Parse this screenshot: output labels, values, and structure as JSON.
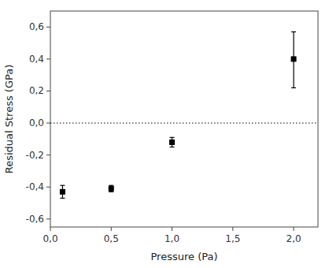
{
  "chart_data": {
    "type": "scatter",
    "x_label": "Pressure (Pa)",
    "y_label": "Residual Stress (GPa)",
    "x": [
      0.1,
      0.5,
      1.0,
      2.0
    ],
    "values": [
      -0.43,
      -0.41,
      -0.12,
      0.4
    ],
    "yerr_lower": [
      0.04,
      0.02,
      0.03,
      0.18
    ],
    "yerr_upper": [
      0.04,
      0.02,
      0.03,
      0.17
    ],
    "marker": "square",
    "color": "black",
    "hline_y": 0.0,
    "xlim": [
      0.0,
      2.2
    ],
    "ylim": [
      -0.65,
      0.7
    ],
    "xticks": [
      {
        "value": 0.0,
        "label": "0,0"
      },
      {
        "value": 0.5,
        "label": "0,5"
      },
      {
        "value": 1.0,
        "label": "1,0"
      },
      {
        "value": 1.5,
        "label": "1,5"
      },
      {
        "value": 2.0,
        "label": "2,0"
      }
    ],
    "yticks": [
      {
        "value": -0.6,
        "label": "-0,6"
      },
      {
        "value": -0.4,
        "label": "-0,4"
      },
      {
        "value": -0.2,
        "label": "-0,2"
      },
      {
        "value": 0.0,
        "label": "0,0"
      },
      {
        "value": 0.2,
        "label": "0,2"
      },
      {
        "value": 0.4,
        "label": "0,4"
      },
      {
        "value": 0.6,
        "label": "0,6"
      }
    ],
    "grid": false
  }
}
